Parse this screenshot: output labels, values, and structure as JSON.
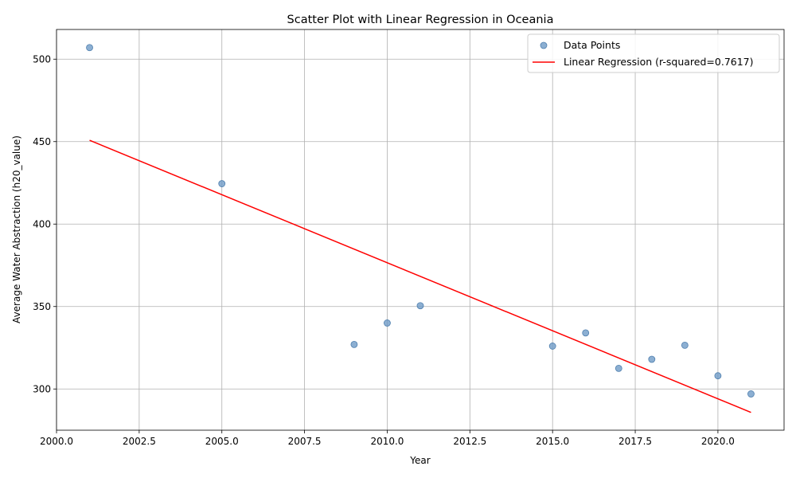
{
  "chart_data": {
    "type": "scatter",
    "title": "Scatter Plot with Linear Regression in Oceania",
    "xlabel": "Year",
    "ylabel": "Average Water Abstraction (h20_value)",
    "xlim": [
      2000.0,
      2022.0
    ],
    "ylim": [
      275,
      518
    ],
    "xticks": [
      "2000.0",
      "2002.5",
      "2005.0",
      "2007.5",
      "2010.0",
      "2012.5",
      "2015.0",
      "2017.5",
      "2020.0"
    ],
    "xtick_values": [
      2000.0,
      2002.5,
      2005.0,
      2007.5,
      2010.0,
      2012.5,
      2015.0,
      2017.5,
      2020.0
    ],
    "yticks": [
      "300",
      "350",
      "400",
      "450",
      "500"
    ],
    "ytick_values": [
      300,
      350,
      400,
      450,
      500
    ],
    "grid": true,
    "legend_position": "top-right",
    "series": [
      {
        "name": "Data Points",
        "kind": "scatter",
        "color": "#6f9bc7",
        "x": [
          2001,
          2005,
          2009,
          2010,
          2011,
          2015,
          2016,
          2017,
          2018,
          2019,
          2020,
          2021
        ],
        "y": [
          507,
          424.5,
          327,
          340,
          350.5,
          326,
          334,
          312.5,
          318,
          326.5,
          308,
          297
        ]
      },
      {
        "name": "Linear Regression (r-squared=0.7617)",
        "kind": "line",
        "color": "#ff0000",
        "x": [
          2001,
          2021
        ],
        "y": [
          450.8,
          285.8
        ]
      }
    ]
  }
}
